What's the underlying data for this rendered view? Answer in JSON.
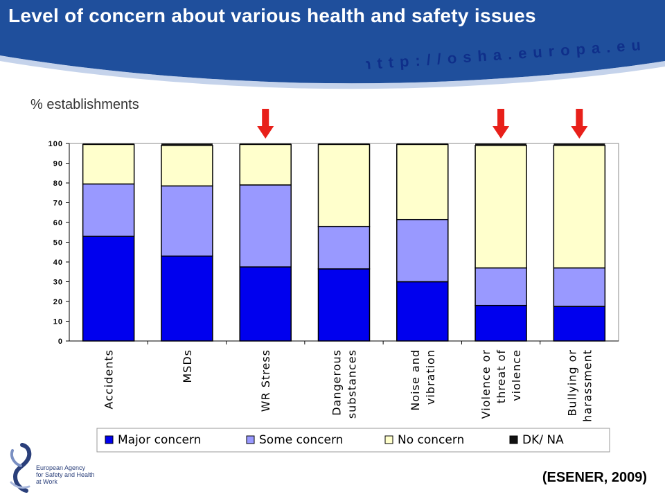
{
  "header": {
    "title": "Level of concern about various health and safety issues",
    "url": "http://osha.europa.eu"
  },
  "y_axis_label": "% establishments",
  "source": "(ESENER, 2009)",
  "logo": {
    "lines": [
      "European Agency",
      "for Safety and Health",
      "at Work"
    ]
  },
  "colors": {
    "header": "#1f4f9c",
    "url_text": "#0f2f8a",
    "major": "#0000ee",
    "some": "#9999ff",
    "none": "#ffffcc",
    "dk": "#111111",
    "arrow": "#e8201a"
  },
  "chart_data": {
    "type": "bar",
    "stacked": true,
    "categories": [
      [
        "Accidents"
      ],
      [
        "MSDs"
      ],
      [
        "WR Stress"
      ],
      [
        "Dangerous",
        "substances"
      ],
      [
        "Noise and",
        "vibration"
      ],
      [
        "Violence or",
        "threat of",
        "violence"
      ],
      [
        "Bullying or",
        "harassment"
      ]
    ],
    "series": [
      {
        "name": "Major concern",
        "values": [
          53,
          43,
          37.5,
          36.5,
          30,
          18,
          17.5
        ]
      },
      {
        "name": "Some concern",
        "values": [
          26.5,
          35.5,
          41.5,
          21.5,
          31.5,
          19,
          19.5
        ]
      },
      {
        "name": "No concern",
        "values": [
          20,
          20.5,
          20.5,
          41.5,
          38,
          62,
          62
        ]
      },
      {
        "name": "DK/ NA",
        "values": [
          0.5,
          1,
          0.5,
          0.5,
          0.5,
          1,
          1
        ]
      }
    ],
    "ylim": [
      0,
      100
    ],
    "yticks": [
      0,
      10,
      20,
      30,
      40,
      50,
      60,
      70,
      80,
      90,
      100
    ],
    "highlighted_categories": [
      2,
      5,
      6
    ],
    "legend_position": "bottom"
  }
}
